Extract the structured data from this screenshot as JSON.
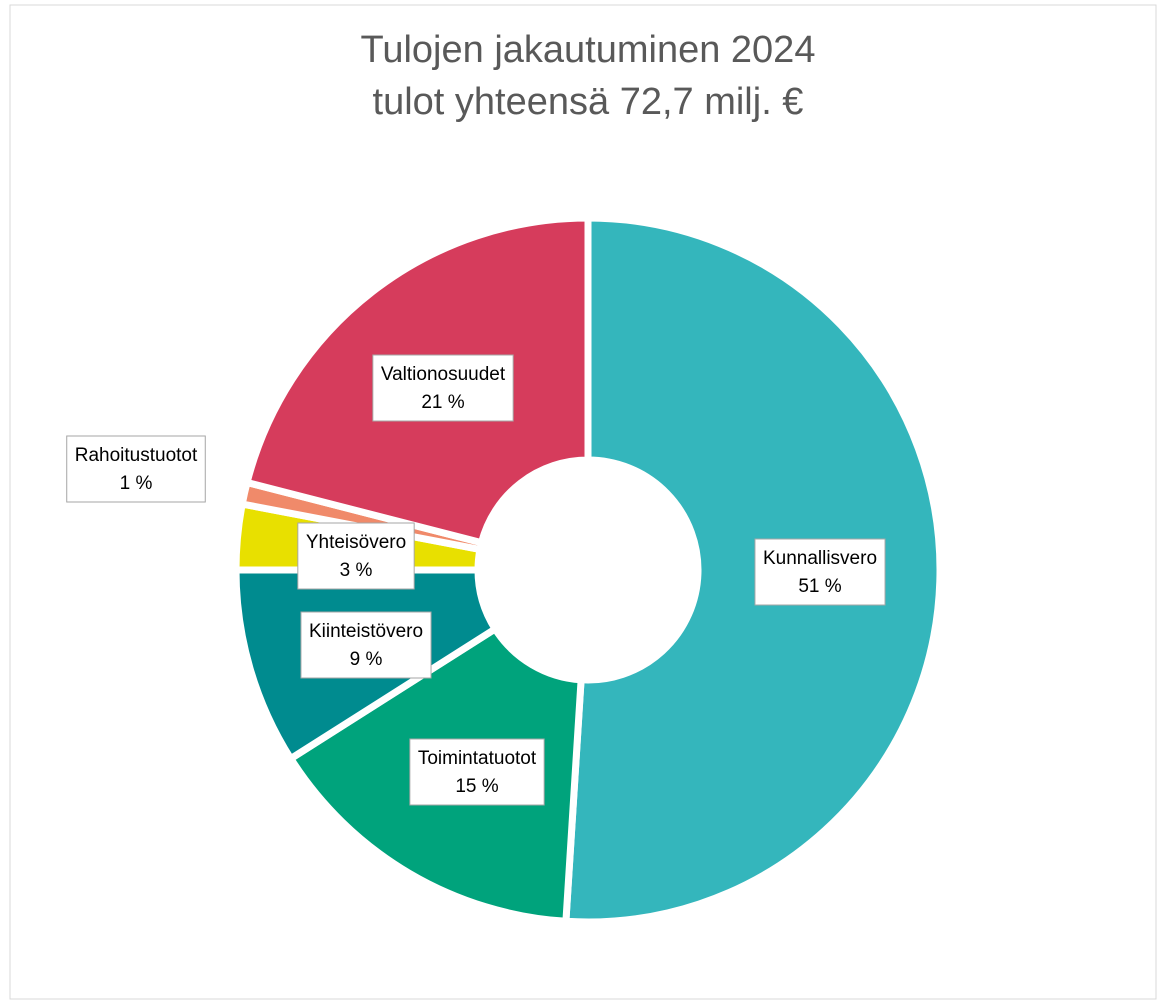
{
  "chart_data": {
    "type": "donut",
    "title": "Tulojen jakautuminen 2024",
    "subtitle": "tulot yhteensä 72,7 milj. €",
    "categories": [
      "Kunnallisvero",
      "Toimintatuotot",
      "Kiinteistövero",
      "Yhteisövero",
      "Rahoitustuotot",
      "Valtionosuudet"
    ],
    "values": [
      51,
      15,
      9,
      3,
      1,
      21
    ],
    "value_labels": [
      "51 %",
      "15 %",
      "9 %",
      "3 %",
      "1 %",
      "21 %"
    ],
    "colors": [
      "#34b6bc",
      "#00a37c",
      "#008b8f",
      "#e8e000",
      "#f08a6a",
      "#d63c5c"
    ]
  }
}
